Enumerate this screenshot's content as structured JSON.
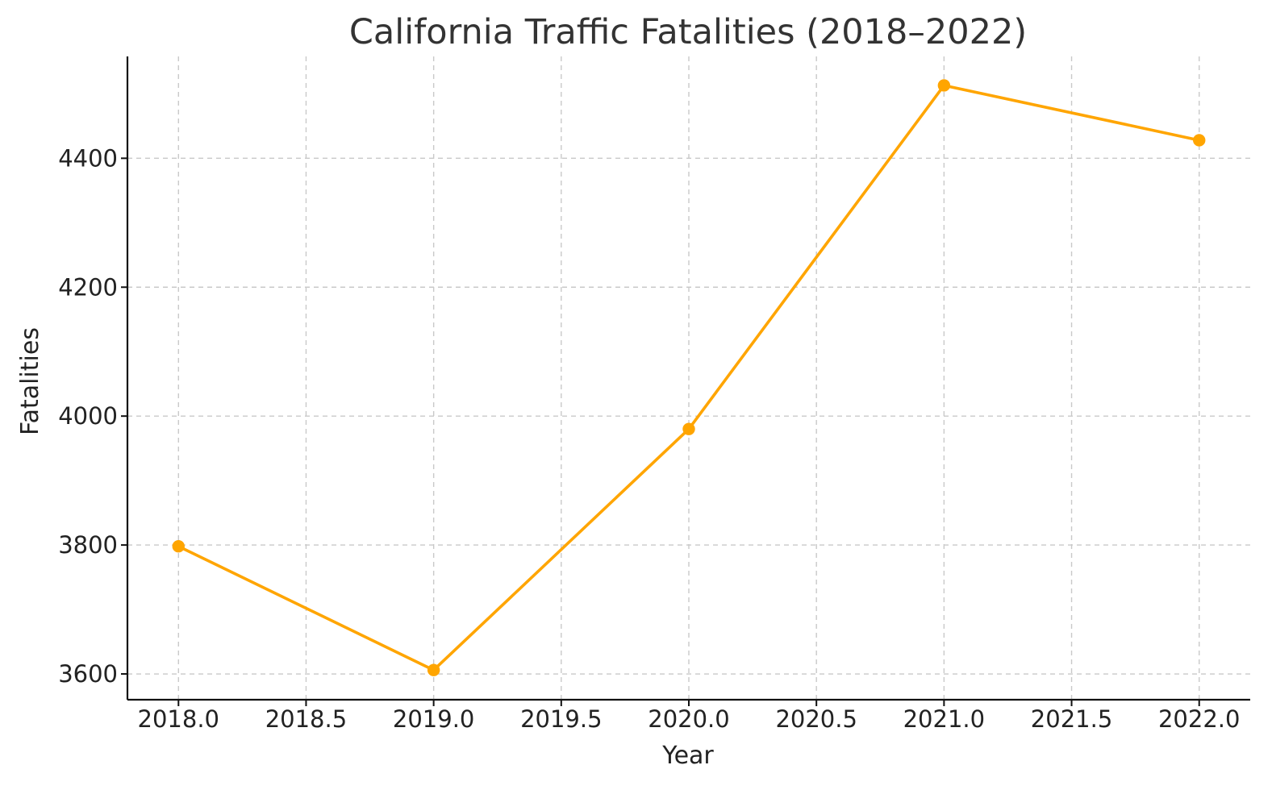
{
  "chart_data": {
    "type": "line",
    "title": "California Traffic Fatalities (2018–2022)",
    "xlabel": "Year",
    "ylabel": "Fatalities",
    "x": [
      2018,
      2019,
      2020,
      2021,
      2022
    ],
    "series": [
      {
        "values": [
          3798,
          3606,
          3980,
          4513,
          4428
        ],
        "color": "#FFA500",
        "marker": "circle"
      }
    ],
    "xlim": [
      2017.8,
      2022.2
    ],
    "ylim": [
      3560,
      4558
    ],
    "xticks": [
      2018.0,
      2018.5,
      2019.0,
      2019.5,
      2020.0,
      2020.5,
      2021.0,
      2021.5,
      2022.0
    ],
    "xtick_labels": [
      "2018.0",
      "2018.5",
      "2019.0",
      "2019.5",
      "2020.0",
      "2020.5",
      "2021.0",
      "2021.5",
      "2022.0"
    ],
    "yticks": [
      3600,
      3800,
      4000,
      4200,
      4400
    ],
    "ytick_labels": [
      "3600",
      "3800",
      "4000",
      "4200",
      "4400"
    ],
    "grid": true,
    "grid_color": "#c9c9c9",
    "axis_color": "#111111",
    "legend": "none"
  }
}
